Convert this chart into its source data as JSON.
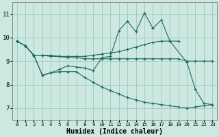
{
  "xlabel": "Humidex (Indice chaleur)",
  "bg_color": "#cce8e0",
  "grid_color": "#9dc8bc",
  "line_color": "#1a6b5a",
  "xlim": [
    -0.5,
    23.5
  ],
  "ylim": [
    6.5,
    11.5
  ],
  "xticks": [
    0,
    1,
    2,
    3,
    4,
    5,
    6,
    7,
    8,
    9,
    10,
    11,
    12,
    13,
    14,
    15,
    16,
    17,
    18,
    19,
    20,
    21,
    22,
    23
  ],
  "yticks": [
    7,
    8,
    9,
    10,
    11
  ],
  "lines": [
    {
      "x": [
        0,
        1,
        2,
        3,
        4,
        5,
        6,
        7,
        8,
        9,
        10,
        11,
        12,
        13,
        14,
        15,
        16,
        17,
        18,
        19,
        20,
        21,
        22,
        23
      ],
      "y": [
        9.85,
        9.65,
        9.25,
        8.4,
        8.5,
        8.55,
        8.55,
        8.55,
        8.3,
        8.1,
        7.9,
        7.75,
        7.6,
        7.45,
        7.35,
        7.25,
        7.2,
        7.15,
        7.1,
        7.05,
        7.0,
        7.05,
        7.1,
        7.15
      ]
    },
    {
      "x": [
        0,
        1,
        2,
        3,
        4,
        5,
        6,
        7,
        8,
        9,
        10,
        11,
        12,
        13,
        14,
        15,
        16,
        17,
        18,
        19,
        20,
        21,
        22,
        23
      ],
      "y": [
        9.85,
        9.65,
        9.25,
        9.25,
        9.2,
        9.2,
        9.15,
        9.15,
        9.1,
        9.1,
        9.1,
        9.1,
        9.1,
        9.1,
        9.1,
        9.1,
        9.1,
        9.1,
        9.1,
        9.1,
        9.0,
        9.0,
        9.0,
        9.0
      ]
    },
    {
      "x": [
        0,
        1,
        2,
        3,
        4,
        5,
        6,
        7,
        8,
        9,
        10,
        11,
        12,
        13,
        14,
        15,
        16,
        17,
        18,
        19,
        20,
        21,
        22,
        23
      ],
      "y": [
        9.85,
        9.65,
        9.25,
        9.25,
        9.25,
        9.2,
        9.2,
        9.2,
        9.2,
        9.25,
        9.3,
        9.35,
        9.4,
        9.5,
        9.6,
        9.7,
        9.8,
        9.85,
        9.85,
        9.85,
        null,
        null,
        null,
        null
      ]
    },
    {
      "x": [
        1,
        2,
        3,
        4,
        5,
        6,
        7,
        8,
        9,
        10,
        11,
        12,
        13,
        14,
        15,
        16,
        17,
        18,
        20,
        21,
        22,
        23
      ],
      "y": [
        9.65,
        9.25,
        8.4,
        8.5,
        8.65,
        8.8,
        8.75,
        8.7,
        8.6,
        9.15,
        9.2,
        10.3,
        10.7,
        10.25,
        11.05,
        10.4,
        10.75,
        9.85,
        8.95,
        7.8,
        7.2,
        7.15
      ]
    }
  ]
}
